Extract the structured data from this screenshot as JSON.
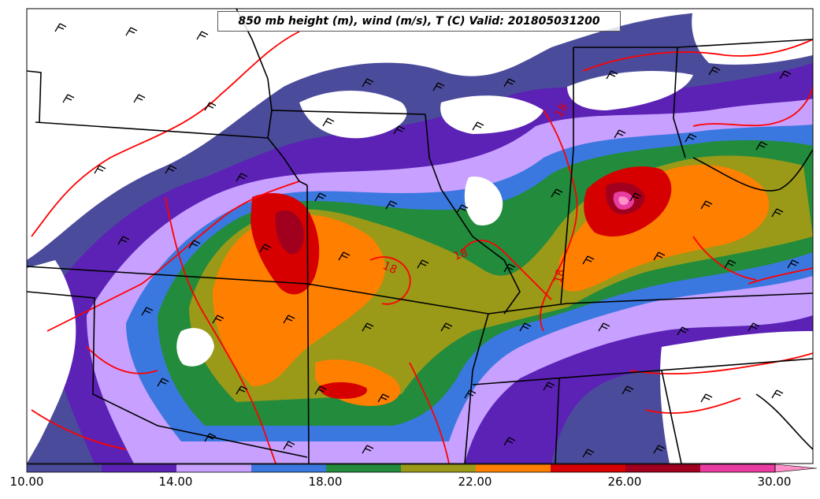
{
  "title": "850 mb height (m), wind (m/s), T (C) Valid: 201805031200",
  "colorbar": {
    "tick_labels": [
      "10.00",
      "14.00",
      "18.00",
      "22.00",
      "26.00",
      "30.00"
    ],
    "colors": [
      "#4b4b9b",
      "#5b22b5",
      "#c8a0ff",
      "#3a78e0",
      "#228b3c",
      "#9a9a18",
      "#ff7f00",
      "#d60000",
      "#a0001e",
      "#e83ca0",
      "#ff90c8"
    ]
  },
  "contour_labels": [
    "18",
    "18",
    "18",
    "18"
  ],
  "colors": {
    "temperature_contour": "#ff0000",
    "borders": "#000000"
  },
  "icons": [
    "wind-barb-icon"
  ]
}
